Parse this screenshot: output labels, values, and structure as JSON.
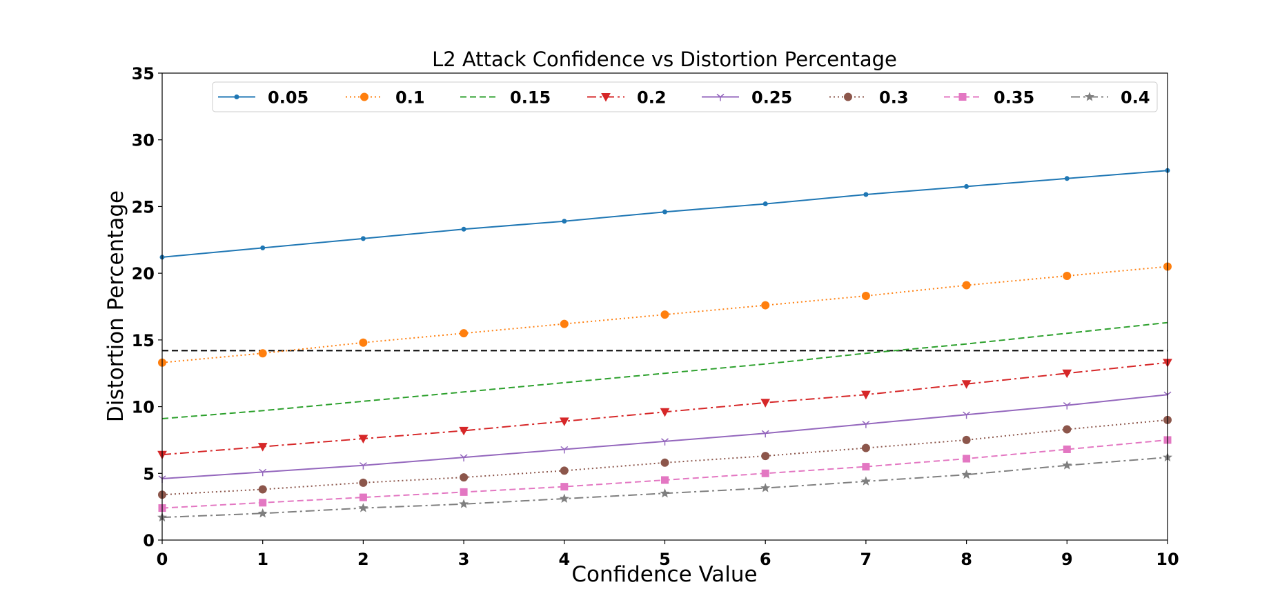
{
  "chart_data": {
    "type": "line",
    "title": "L2 Attack Confidence vs Distortion Percentage",
    "xlabel": "Confidence Value",
    "ylabel": "Distortion Percentage",
    "xlim": [
      0,
      10
    ],
    "ylim": [
      0,
      35
    ],
    "xticks": [
      0,
      1,
      2,
      3,
      4,
      5,
      6,
      7,
      8,
      9,
      10
    ],
    "yticks": [
      0,
      5,
      10,
      15,
      20,
      25,
      30,
      35
    ],
    "grid": false,
    "legend_position": "top",
    "x": [
      0,
      1,
      2,
      3,
      4,
      5,
      6,
      7,
      8,
      9,
      10
    ],
    "series": [
      {
        "name": "0.05",
        "color": "#1f77b4",
        "linestyle": "solid",
        "marker": "point",
        "values": [
          21.2,
          21.9,
          22.6,
          23.3,
          23.9,
          24.6,
          25.2,
          25.9,
          26.5,
          27.1,
          27.7
        ]
      },
      {
        "name": "0.1",
        "color": "#ff7f0e",
        "linestyle": "dotted",
        "marker": "circle",
        "values": [
          13.3,
          14.0,
          14.8,
          15.5,
          16.2,
          16.9,
          17.6,
          18.3,
          19.1,
          19.8,
          20.5
        ]
      },
      {
        "name": "0.15",
        "color": "#2ca02c",
        "linestyle": "dashed",
        "marker": "none",
        "values": [
          9.1,
          9.7,
          10.4,
          11.1,
          11.8,
          12.5,
          13.2,
          14.0,
          14.7,
          15.5,
          16.3
        ]
      },
      {
        "name": "0.2",
        "color": "#d62728",
        "linestyle": "dashdot",
        "marker": "triangle",
        "values": [
          6.4,
          7.0,
          7.6,
          8.2,
          8.9,
          9.6,
          10.3,
          10.9,
          11.7,
          12.5,
          13.3
        ]
      },
      {
        "name": "0.25",
        "color": "#9467bd",
        "linestyle": "solid",
        "marker": "tri",
        "values": [
          4.6,
          5.1,
          5.6,
          6.2,
          6.8,
          7.4,
          8.0,
          8.7,
          9.4,
          10.1,
          10.9
        ]
      },
      {
        "name": "0.3",
        "color": "#8c564b",
        "linestyle": "dotted",
        "marker": "circle",
        "values": [
          3.4,
          3.8,
          4.3,
          4.7,
          5.2,
          5.8,
          6.3,
          6.9,
          7.5,
          8.3,
          9.0
        ]
      },
      {
        "name": "0.35",
        "color": "#e377c2",
        "linestyle": "dashed",
        "marker": "square",
        "values": [
          2.4,
          2.8,
          3.2,
          3.6,
          4.0,
          4.5,
          5.0,
          5.5,
          6.1,
          6.8,
          7.5
        ]
      },
      {
        "name": "0.4",
        "color": "#7f7f7f",
        "linestyle": "dashdot",
        "marker": "star",
        "values": [
          1.7,
          2.0,
          2.4,
          2.7,
          3.1,
          3.5,
          3.9,
          4.4,
          4.9,
          5.6,
          6.2
        ]
      }
    ],
    "reference_line": {
      "y": 14.2,
      "color": "#000000",
      "linestyle": "dashed"
    }
  }
}
